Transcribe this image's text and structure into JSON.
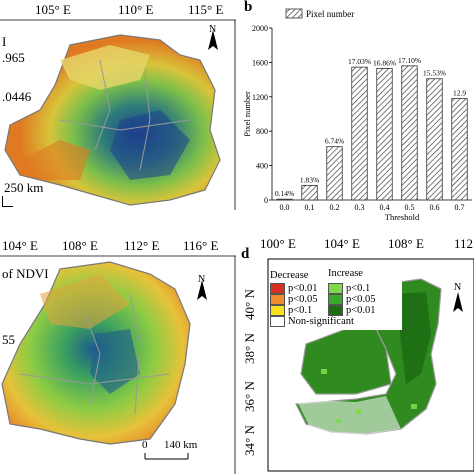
{
  "panel_a": {
    "lon_labels": [
      "105° E",
      "110° E",
      "115° E"
    ],
    "legend_partial": [
      "I",
      ".965",
      ".0446"
    ],
    "scale_label": "250 km",
    "north": "N"
  },
  "panel_b": {
    "letter": "b",
    "legend_label": "Pixel number"
  },
  "panel_c": {
    "lon_labels": [
      "104° E",
      "108° E",
      "112° E",
      "116° E"
    ],
    "legend_partial": [
      "of NDVI",
      "55"
    ],
    "scale_labels": [
      "0",
      "140 km"
    ],
    "north": "N"
  },
  "panel_d": {
    "letter": "d",
    "lon_labels": [
      "100° E",
      "104° E",
      "108° E",
      "112"
    ],
    "lat_labels": [
      "40° N",
      "38° N",
      "36° N",
      "34° N"
    ],
    "decrease_title": "Decrease",
    "increase_title": "Increase",
    "decrease_items": [
      {
        "label": "p<0.01",
        "color": "#d7301f"
      },
      {
        "label": "p<0.05",
        "color": "#f08c2e"
      },
      {
        "label": "p<0.1",
        "color": "#f7e01c"
      }
    ],
    "increase_items": [
      {
        "label": "p<0.1",
        "color": "#7fd84a"
      },
      {
        "label": "p<0.05",
        "color": "#3aa82a"
      },
      {
        "label": "p<0.01",
        "color": "#1e6b14"
      }
    ],
    "nonsig_label": "Non-significant",
    "north": "N"
  },
  "chart_data": {
    "type": "bar",
    "categories": [
      "0.0",
      "0.1",
      "0.2",
      "0.3",
      "0.4",
      "0.5",
      "0.6",
      "0.7"
    ],
    "values": [
      10,
      170,
      620,
      1545,
      1530,
      1560,
      1410,
      1180
    ],
    "data_labels": [
      "0.14%",
      "1.83%",
      "6.74%",
      "17.03%",
      "16.86%",
      "17.10%",
      "15.53%",
      "12.9"
    ],
    "xlabel": "Threshold",
    "ylabel": "Pixel number",
    "ylim": [
      0,
      2000
    ],
    "yticks": [
      0,
      400,
      800,
      1200,
      1600,
      2000
    ],
    "series": [
      {
        "name": "Pixel number",
        "values": [
          10,
          170,
          620,
          1545,
          1530,
          1560,
          1410,
          1180
        ]
      }
    ],
    "legend": "top-left",
    "pattern": "diagonal-hatch"
  }
}
